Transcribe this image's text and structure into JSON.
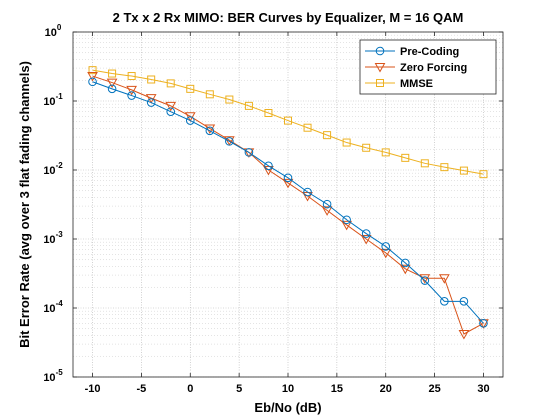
{
  "chart_data": {
    "type": "line",
    "title": "2 Tx x 2 Rx MIMO: BER Curves by Equalizer, M = 16 QAM",
    "xlabel": "Eb/No (dB)",
    "ylabel": "Bit Error Rate (avg over 3 flat fading channels)",
    "xlim": [
      -12,
      32
    ],
    "ylim": [
      1e-05,
      1
    ],
    "yscale": "log",
    "grid": true,
    "minor_grid": true,
    "legend_position": "top-right",
    "xticks": [
      -10,
      -5,
      0,
      5,
      10,
      15,
      20,
      25,
      30
    ],
    "xtick_labels": [
      "-10",
      "-5",
      "0",
      "5",
      "10",
      "15",
      "20",
      "25",
      "30"
    ],
    "yticks": [
      {
        "value": 1,
        "base": "10",
        "exp": "0"
      },
      {
        "value": 0.1,
        "base": "10",
        "exp": "-1"
      },
      {
        "value": 0.01,
        "base": "10",
        "exp": "-2"
      },
      {
        "value": 0.001,
        "base": "10",
        "exp": "-3"
      },
      {
        "value": 0.0001,
        "base": "10",
        "exp": "-4"
      },
      {
        "value": 1e-05,
        "base": "10",
        "exp": "-5"
      }
    ],
    "x": [
      -10,
      -8,
      -6,
      -4,
      -2,
      0,
      2,
      4,
      6,
      8,
      10,
      12,
      14,
      16,
      18,
      20,
      22,
      24,
      26,
      28,
      30
    ],
    "series": [
      {
        "name": "Pre-Coding",
        "color": "#0072BD",
        "marker": "circle",
        "values": [
          0.19,
          0.15,
          0.12,
          0.095,
          0.07,
          0.052,
          0.037,
          0.026,
          0.018,
          0.0115,
          0.0077,
          0.0048,
          0.0032,
          0.0019,
          0.0012,
          0.00078,
          0.00045,
          0.00025,
          0.000125,
          0.000125,
          6e-05
        ]
      },
      {
        "name": "Zero Forcing",
        "color": "#D95319",
        "marker": "triangle-down",
        "values": [
          0.23,
          0.185,
          0.145,
          0.11,
          0.085,
          0.06,
          0.04,
          0.027,
          0.018,
          0.01,
          0.0065,
          0.0042,
          0.0026,
          0.0016,
          0.001,
          0.00063,
          0.00037,
          0.00027,
          0.00027,
          4.2e-05,
          6e-05
        ]
      },
      {
        "name": "MMSE",
        "color": "#EDB120",
        "marker": "square",
        "values": [
          0.28,
          0.25,
          0.23,
          0.205,
          0.18,
          0.15,
          0.125,
          0.105,
          0.085,
          0.067,
          0.052,
          0.041,
          0.032,
          0.025,
          0.021,
          0.018,
          0.015,
          0.0125,
          0.011,
          0.0098,
          0.0087
        ]
      }
    ]
  }
}
